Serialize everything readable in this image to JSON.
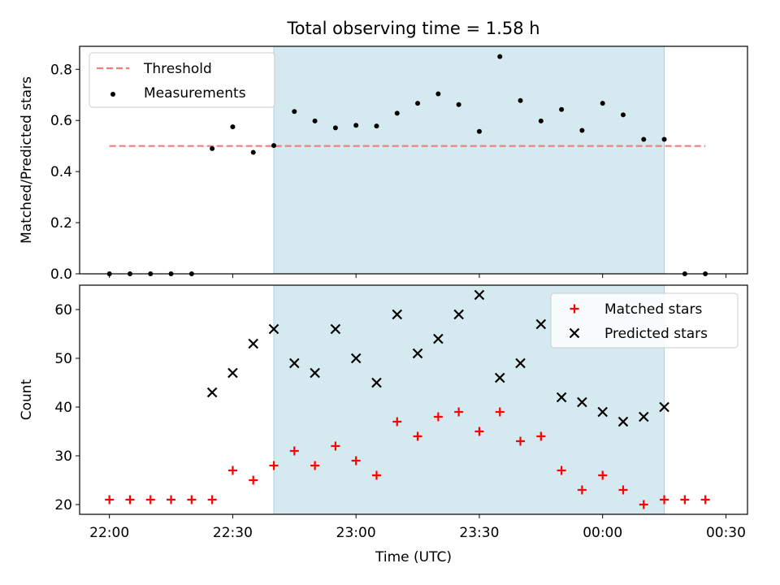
{
  "chart_data": [
    {
      "type": "scatter",
      "title": "Total observing time = 1.58 h",
      "xlabel": "",
      "ylabel": "Matched/Predicted stars",
      "ylim": [
        0,
        0.89
      ],
      "yticks": [
        "0.0",
        "0.2",
        "0.4",
        "0.6",
        "0.8"
      ],
      "ytick_values": [
        0,
        0.2,
        0.4,
        0.6,
        0.8
      ],
      "observing_window": [
        "22:40",
        "00:15"
      ],
      "observing_window_color": "#d4eaf0",
      "legend_position": "upper left",
      "threshold": {
        "name": "Threshold",
        "value": 0.5,
        "x_range": [
          "22:00",
          "00:25"
        ],
        "color": "#f07c7c"
      },
      "series": [
        {
          "name": "Measurements",
          "color": "#000000",
          "x": [
            "22:00",
            "22:05",
            "22:10",
            "22:15",
            "22:20",
            "22:25",
            "22:30",
            "22:35",
            "22:40",
            "22:45",
            "22:50",
            "22:55",
            "23:00",
            "23:05",
            "23:10",
            "23:15",
            "23:20",
            "23:25",
            "23:30",
            "23:35",
            "23:40",
            "23:45",
            "23:50",
            "23:55",
            "00:00",
            "00:05",
            "00:10",
            "00:15",
            "00:20",
            "00:25"
          ],
          "y": [
            0,
            0,
            0,
            0,
            0,
            0.49,
            0.575,
            0.475,
            0.502,
            0.635,
            0.598,
            0.571,
            0.581,
            0.578,
            0.628,
            0.667,
            0.704,
            0.662,
            0.557,
            0.85,
            0.678,
            0.598,
            0.643,
            0.561,
            0.667,
            0.622,
            0.526,
            0.526,
            0,
            0
          ]
        }
      ]
    },
    {
      "type": "scatter",
      "title": "",
      "xlabel": "Time (UTC)",
      "ylabel": "Count",
      "ylim": [
        18,
        65
      ],
      "yticks": [
        "20",
        "30",
        "40",
        "50",
        "60"
      ],
      "ytick_values": [
        20,
        30,
        40,
        50,
        60
      ],
      "xticks": [
        "22:00",
        "22:30",
        "23:00",
        "23:30",
        "00:00",
        "00:30"
      ],
      "observing_window": [
        "22:40",
        "00:15"
      ],
      "observing_window_color": "#d4eaf0",
      "legend_position": "upper right",
      "series": [
        {
          "name": "Matched stars",
          "marker": "+",
          "color": "#ff0000",
          "x": [
            "22:00",
            "22:05",
            "22:10",
            "22:15",
            "22:20",
            "22:25",
            "22:30",
            "22:35",
            "22:40",
            "22:45",
            "22:50",
            "22:55",
            "23:00",
            "23:05",
            "23:10",
            "23:15",
            "23:20",
            "23:25",
            "23:30",
            "23:35",
            "23:40",
            "23:45",
            "23:50",
            "23:55",
            "00:00",
            "00:05",
            "00:10",
            "00:15",
            "00:20",
            "00:25"
          ],
          "y": [
            21,
            21,
            21,
            21,
            21,
            21,
            27,
            25,
            28,
            31,
            28,
            32,
            29,
            26,
            37,
            34,
            38,
            39,
            35,
            39,
            33,
            34,
            27,
            23,
            26,
            23,
            20,
            21,
            21,
            21
          ]
        },
        {
          "name": "Predicted stars",
          "marker": "x",
          "color": "#000000",
          "x": [
            "22:25",
            "22:30",
            "22:35",
            "22:40",
            "22:45",
            "22:50",
            "22:55",
            "23:00",
            "23:05",
            "23:10",
            "23:15",
            "23:20",
            "23:25",
            "23:30",
            "23:35",
            "23:40",
            "23:45",
            "23:50",
            "23:55",
            "00:00",
            "00:05",
            "00:10",
            "00:15"
          ],
          "y": [
            43,
            47,
            53,
            56,
            49,
            47,
            56,
            50,
            45,
            59,
            51,
            54,
            59,
            63,
            46,
            49,
            57,
            42,
            41,
            39,
            37,
            38,
            40
          ]
        }
      ]
    }
  ]
}
